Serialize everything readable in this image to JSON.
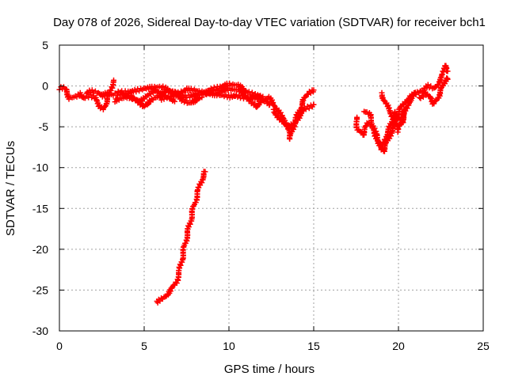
{
  "chart_data": {
    "type": "scatter",
    "title": "Day 078 of 2026, Sidereal Day-to-day VTEC variation (SDTVAR) for receiver bch1",
    "xlabel": "GPS time / hours",
    "ylabel": "SDTVAR / TECUs",
    "xlim": [
      0,
      25
    ],
    "ylim": [
      -30,
      5
    ],
    "xticks": [
      0,
      5,
      10,
      15,
      20,
      25
    ],
    "yticks": [
      5,
      0,
      -5,
      -10,
      -15,
      -20,
      -25,
      -30
    ],
    "grid": true,
    "marker": "+",
    "color": "#ff0000",
    "series": [
      {
        "name": "bch1",
        "segments": [
          [
            [
              0.0,
              -0.3
            ],
            [
              0.2,
              -0.2
            ],
            [
              0.4,
              -0.5
            ],
            [
              0.6,
              -1.5
            ],
            [
              0.9,
              -1.3
            ],
            [
              1.2,
              -1.0
            ],
            [
              1.5,
              -1.5
            ],
            [
              1.8,
              -1.2
            ],
            [
              2.1,
              -1.5
            ],
            [
              2.4,
              -2.5
            ],
            [
              2.6,
              -2.8
            ],
            [
              2.8,
              -1.8
            ],
            [
              3.0,
              -0.6
            ],
            [
              3.2,
              0.7
            ]
          ],
          [
            [
              1.6,
              -0.9
            ],
            [
              1.9,
              -0.6
            ],
            [
              2.2,
              -0.8
            ],
            [
              2.5,
              -1.2
            ],
            [
              2.8,
              -0.9
            ],
            [
              3.1,
              -1.1
            ],
            [
              3.5,
              -0.9
            ],
            [
              3.9,
              -1.1
            ],
            [
              4.3,
              -1.5
            ],
            [
              4.7,
              -1.9
            ],
            [
              5.0,
              -1.6
            ],
            [
              5.3,
              -1.0
            ],
            [
              5.6,
              -0.5
            ],
            [
              5.9,
              -0.8
            ],
            [
              6.2,
              -1.2
            ],
            [
              6.5,
              -1.6
            ],
            [
              6.8,
              -1.9
            ]
          ],
          [
            [
              3.3,
              -1.8
            ],
            [
              3.7,
              -1.5
            ],
            [
              4.1,
              -1.3
            ],
            [
              4.5,
              -1.6
            ],
            [
              4.9,
              -2.5
            ],
            [
              5.2,
              -2.2
            ],
            [
              5.6,
              -1.5
            ],
            [
              6.0,
              -1.0
            ],
            [
              6.4,
              -0.6
            ],
            [
              6.8,
              -0.9
            ],
            [
              7.2,
              -1.6
            ],
            [
              7.6,
              -2.1
            ],
            [
              8.0,
              -1.8
            ],
            [
              8.4,
              -1.4
            ]
          ],
          [
            [
              3.5,
              -0.7
            ],
            [
              4.0,
              -0.8
            ],
            [
              4.5,
              -0.6
            ],
            [
              5.0,
              -0.3
            ],
            [
              5.5,
              -0.2
            ],
            [
              6.0,
              -0.1
            ],
            [
              6.5,
              -0.6
            ],
            [
              7.0,
              -0.9
            ],
            [
              7.5,
              -0.4
            ],
            [
              8.0,
              -0.5
            ],
            [
              8.5,
              -0.9
            ],
            [
              9.0,
              -0.4
            ],
            [
              9.5,
              -0.1
            ],
            [
              10.0,
              0.2
            ],
            [
              10.5,
              0.1
            ],
            [
              11.0,
              -0.6
            ],
            [
              11.5,
              -1.1
            ],
            [
              12.0,
              -1.3
            ]
          ],
          [
            [
              6.0,
              -1.6
            ],
            [
              6.5,
              -1.3
            ],
            [
              7.0,
              -1.0
            ],
            [
              7.5,
              -1.3
            ],
            [
              8.0,
              -1.1
            ],
            [
              8.5,
              -0.9
            ],
            [
              9.0,
              -1.0
            ],
            [
              9.5,
              -1.1
            ],
            [
              10.0,
              -1.3
            ],
            [
              10.5,
              -1.2
            ],
            [
              11.0,
              -1.5
            ],
            [
              11.5,
              -1.4
            ],
            [
              12.0,
              -1.7
            ],
            [
              12.4,
              -2.3
            ]
          ],
          [
            [
              8.6,
              -1.0
            ],
            [
              9.0,
              -0.8
            ],
            [
              9.5,
              -0.6
            ],
            [
              10.0,
              -0.4
            ],
            [
              10.5,
              -0.5
            ],
            [
              11.0,
              -1.2
            ],
            [
              11.3,
              -2.0
            ],
            [
              11.6,
              -2.6
            ],
            [
              12.0,
              -1.8
            ],
            [
              12.3,
              -1.4
            ],
            [
              12.6,
              -2.0
            ],
            [
              13.0,
              -3.4
            ],
            [
              13.4,
              -4.5
            ],
            [
              13.6,
              -6.5
            ],
            [
              13.8,
              -5.0
            ],
            [
              14.0,
              -3.8
            ],
            [
              14.2,
              -2.8
            ],
            [
              14.4,
              -1.8
            ],
            [
              14.7,
              -0.8
            ],
            [
              15.0,
              -0.5
            ]
          ],
          [
            [
              12.6,
              -3.0
            ],
            [
              13.0,
              -4.0
            ],
            [
              13.3,
              -4.8
            ],
            [
              13.6,
              -5.0
            ],
            [
              13.9,
              -4.5
            ],
            [
              14.2,
              -3.5
            ],
            [
              14.5,
              -2.8
            ],
            [
              14.8,
              -2.5
            ],
            [
              15.0,
              -2.3
            ]
          ],
          [
            [
              17.5,
              -3.8
            ],
            [
              17.6,
              -5.3
            ],
            [
              17.9,
              -6.0
            ],
            [
              18.2,
              -4.5
            ],
            [
              18.5,
              -5.2
            ],
            [
              18.8,
              -6.8
            ],
            [
              19.0,
              -7.8
            ],
            [
              19.2,
              -6.5
            ],
            [
              19.4,
              -5.5
            ],
            [
              19.6,
              -4.5
            ],
            [
              19.8,
              -3.2
            ],
            [
              20.0,
              -3.8
            ],
            [
              20.2,
              -4.5
            ],
            [
              20.4,
              -3.2
            ],
            [
              20.6,
              -2.0
            ],
            [
              20.8,
              -1.5
            ],
            [
              21.0,
              -0.8
            ]
          ],
          [
            [
              18.0,
              -3.1
            ],
            [
              18.3,
              -3.5
            ],
            [
              18.6,
              -5.5
            ],
            [
              18.9,
              -7.2
            ],
            [
              19.1,
              -8.0
            ],
            [
              19.3,
              -7.0
            ],
            [
              19.5,
              -6.0
            ],
            [
              19.7,
              -5.2
            ],
            [
              19.9,
              -4.0
            ],
            [
              20.1,
              -2.8
            ],
            [
              20.3,
              -2.2
            ],
            [
              20.5,
              -1.8
            ],
            [
              20.7,
              -1.3
            ],
            [
              21.0,
              -1.0
            ],
            [
              21.3,
              -0.6
            ],
            [
              21.6,
              -0.8
            ]
          ],
          [
            [
              19.0,
              -1.0
            ],
            [
              19.2,
              -1.8
            ],
            [
              19.4,
              -2.8
            ],
            [
              19.6,
              -3.5
            ],
            [
              19.8,
              -4.5
            ],
            [
              20.0,
              -5.5
            ],
            [
              20.2,
              -4.2
            ],
            [
              20.4,
              -2.8
            ]
          ],
          [
            [
              21.3,
              -1.5
            ],
            [
              21.6,
              -1.0
            ],
            [
              21.9,
              -1.5
            ],
            [
              22.1,
              -2.2
            ],
            [
              22.3,
              -1.5
            ],
            [
              22.5,
              -0.5
            ],
            [
              22.7,
              0.3
            ],
            [
              22.8,
              1.0
            ],
            [
              22.9,
              0.8
            ]
          ],
          [
            [
              21.5,
              -0.3
            ],
            [
              21.8,
              0.0
            ],
            [
              22.1,
              -0.3
            ],
            [
              22.4,
              0.5
            ],
            [
              22.6,
              1.2
            ],
            [
              22.7,
              2.5
            ],
            [
              22.8,
              2.3
            ],
            [
              22.9,
              1.8
            ]
          ],
          [
            [
              5.8,
              -26.5
            ],
            [
              6.2,
              -25.8
            ],
            [
              6.6,
              -25.0
            ],
            [
              6.9,
              -24.0
            ],
            [
              7.1,
              -22.5
            ],
            [
              7.3,
              -20.5
            ],
            [
              7.5,
              -18.5
            ],
            [
              7.7,
              -16.8
            ],
            [
              7.9,
              -15.0
            ],
            [
              8.1,
              -13.5
            ],
            [
              8.3,
              -12.0
            ],
            [
              8.5,
              -11.0
            ],
            [
              8.6,
              -10.5
            ]
          ]
        ]
      }
    ]
  }
}
